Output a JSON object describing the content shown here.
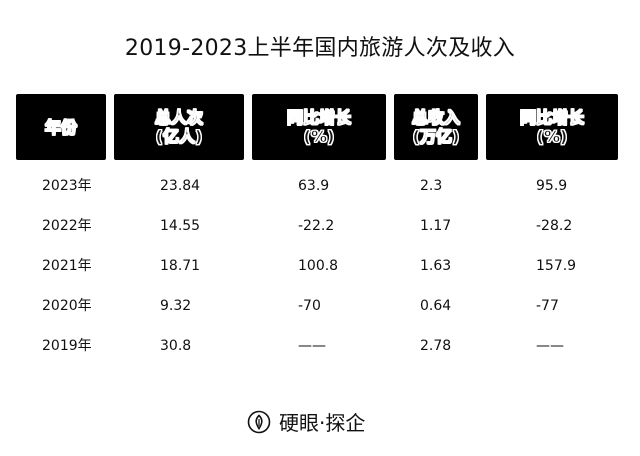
{
  "title": "2019-2023上半年国内旅游人次及收入",
  "headers": [
    {
      "line1": "年份",
      "line2": ""
    },
    {
      "line1": "总人次",
      "line2": "(亿人)"
    },
    {
      "line1": "同比增长",
      "line2": "(%)"
    },
    {
      "line1": "总收入",
      "line2": "(万亿)"
    },
    {
      "line1": "同比增长",
      "line2": "(%)"
    }
  ],
  "rows": [
    {
      "year": "2023年",
      "trips": "23.84",
      "trips_growth": "63.9",
      "revenue": "2.3",
      "revenue_growth": "95.9"
    },
    {
      "year": "2022年",
      "trips": "14.55",
      "trips_growth": "-22.2",
      "revenue": "1.17",
      "revenue_growth": "-28.2"
    },
    {
      "year": "2021年",
      "trips": "18.71",
      "trips_growth": "100.8",
      "revenue": "1.63",
      "revenue_growth": "157.9"
    },
    {
      "year": "2020年",
      "trips": "9.32",
      "trips_growth": "-70",
      "revenue": "0.64",
      "revenue_growth": "-77"
    },
    {
      "year": "2019年",
      "trips": "30.8",
      "trips_growth": "——",
      "revenue": "2.78",
      "revenue_growth": "——"
    }
  ],
  "footer": {
    "logo_icon": "seed-drop-icon",
    "brand": "硬眼·探企"
  }
}
